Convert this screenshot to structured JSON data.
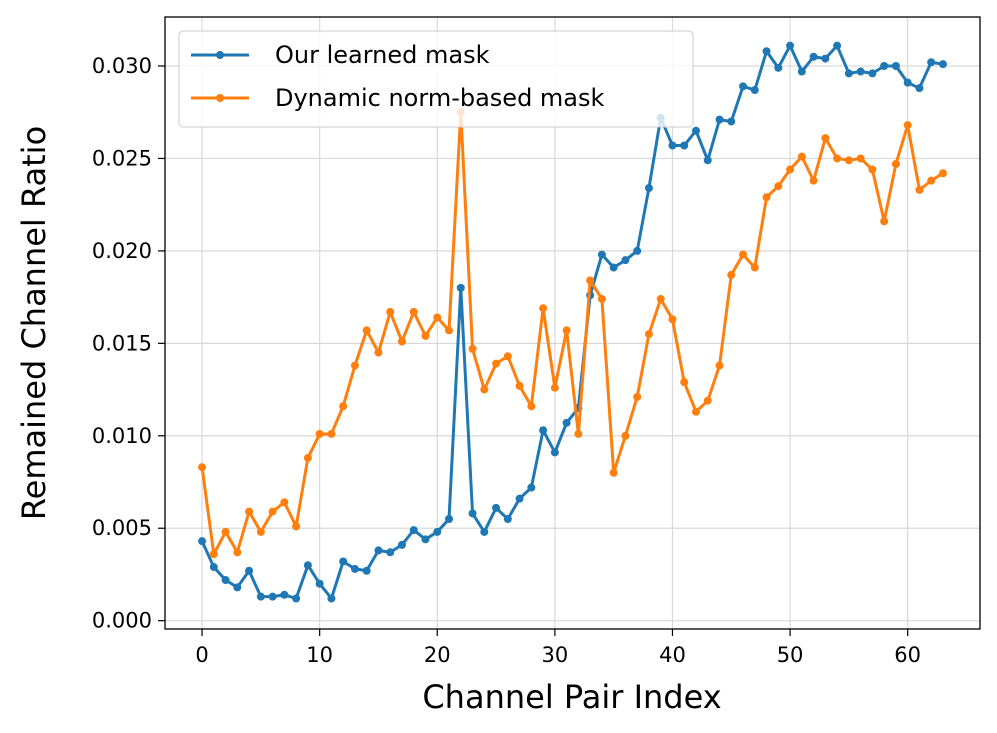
{
  "chart_data": {
    "type": "line",
    "xlabel": "Channel Pair Index",
    "ylabel": "Remained Channel Ratio",
    "xlim": [
      -3.15,
      66.15
    ],
    "ylim": [
      -0.00045,
      0.03265
    ],
    "xticks": [
      0,
      10,
      20,
      30,
      40,
      50,
      60
    ],
    "xtick_labels": [
      "0",
      "10",
      "20",
      "30",
      "40",
      "50",
      "60"
    ],
    "yticks": [
      0.0,
      0.005,
      0.01,
      0.015,
      0.02,
      0.025,
      0.03
    ],
    "ytick_labels": [
      "0.000",
      "0.005",
      "0.010",
      "0.015",
      "0.020",
      "0.025",
      "0.030"
    ],
    "grid": true,
    "legend_position": "upper-left",
    "x": [
      0,
      1,
      2,
      3,
      4,
      5,
      6,
      7,
      8,
      9,
      10,
      11,
      12,
      13,
      14,
      15,
      16,
      17,
      18,
      19,
      20,
      21,
      22,
      23,
      24,
      25,
      26,
      27,
      28,
      29,
      30,
      31,
      32,
      33,
      34,
      35,
      36,
      37,
      38,
      39,
      40,
      41,
      42,
      43,
      44,
      45,
      46,
      47,
      48,
      49,
      50,
      51,
      52,
      53,
      54,
      55,
      56,
      57,
      58,
      59,
      60,
      61,
      62,
      63
    ],
    "series": [
      {
        "name": "Our learned mask",
        "color": "#1f77b4",
        "values": [
          0.0043,
          0.0029,
          0.0022,
          0.0018,
          0.0027,
          0.0013,
          0.0013,
          0.0014,
          0.0012,
          0.003,
          0.002,
          0.0012,
          0.0032,
          0.0028,
          0.0027,
          0.0038,
          0.0037,
          0.0041,
          0.0049,
          0.0044,
          0.0048,
          0.0055,
          0.018,
          0.0058,
          0.0048,
          0.0061,
          0.0055,
          0.0066,
          0.0072,
          0.0103,
          0.0091,
          0.0107,
          0.0115,
          0.0176,
          0.0198,
          0.0191,
          0.0195,
          0.02,
          0.0234,
          0.0272,
          0.0257,
          0.0257,
          0.0265,
          0.0249,
          0.0271,
          0.027,
          0.0289,
          0.0287,
          0.0308,
          0.0299,
          0.0311,
          0.0297,
          0.0305,
          0.0304,
          0.0311,
          0.0296,
          0.0297,
          0.0296,
          0.03,
          0.03,
          0.0291,
          0.0288,
          0.0302,
          0.0301
        ]
      },
      {
        "name": "Dynamic norm-based mask",
        "color": "#ff7f0e",
        "values": [
          0.0083,
          0.0036,
          0.0048,
          0.0037,
          0.0059,
          0.0048,
          0.0059,
          0.0064,
          0.0051,
          0.0088,
          0.0101,
          0.0101,
          0.0116,
          0.0138,
          0.0157,
          0.0145,
          0.0167,
          0.0151,
          0.0167,
          0.0154,
          0.0164,
          0.0157,
          0.0275,
          0.0147,
          0.0125,
          0.0139,
          0.0143,
          0.0127,
          0.0116,
          0.0169,
          0.0126,
          0.0157,
          0.0101,
          0.0184,
          0.0174,
          0.008,
          0.01,
          0.0121,
          0.0155,
          0.0174,
          0.0163,
          0.0129,
          0.0113,
          0.0119,
          0.0138,
          0.0187,
          0.0198,
          0.0191,
          0.0229,
          0.0235,
          0.0244,
          0.0251,
          0.0238,
          0.0261,
          0.025,
          0.0249,
          0.025,
          0.0244,
          0.0216,
          0.0247,
          0.0268,
          0.0233,
          0.0238,
          0.0242
        ]
      }
    ]
  }
}
